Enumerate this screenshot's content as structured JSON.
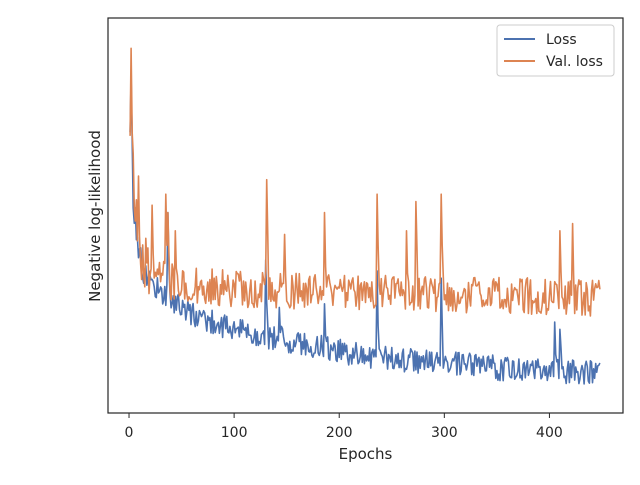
{
  "chart_data": {
    "type": "line",
    "title": "",
    "xlabel": "Epochs",
    "ylabel": "Negative log-likelihood",
    "xlim": [
      -20,
      470
    ],
    "ylim": [
      0,
      1
    ],
    "x_ticks": [
      0,
      100,
      200,
      300,
      400
    ],
    "y_ticks_visible": false,
    "grid": false,
    "legend": {
      "placement": "top-right",
      "entries": [
        "Loss",
        "Val. loss"
      ]
    },
    "colors": {
      "loss": "#4c72b0",
      "val_loss": "#dd8452",
      "frame": "#262626"
    },
    "n_epochs": 448,
    "series": [
      {
        "name": "Loss",
        "color": "#4c72b0",
        "baseline": [
          [
            1,
            0.7
          ],
          [
            4,
            0.55
          ],
          [
            7,
            0.45
          ],
          [
            10,
            0.38
          ],
          [
            15,
            0.33
          ],
          [
            25,
            0.3
          ],
          [
            40,
            0.26
          ],
          [
            60,
            0.22
          ],
          [
            100,
            0.18
          ],
          [
            150,
            0.15
          ],
          [
            200,
            0.12
          ],
          [
            250,
            0.1
          ],
          [
            300,
            0.085
          ],
          [
            350,
            0.075
          ],
          [
            400,
            0.065
          ],
          [
            448,
            0.06
          ]
        ],
        "noise": 0.035,
        "spikes": [
          [
            2,
            0.87
          ],
          [
            37,
            0.5
          ],
          [
            130,
            0.37
          ],
          [
            143,
            0.24
          ],
          [
            186,
            0.25
          ],
          [
            236,
            0.34
          ],
          [
            297,
            0.32
          ],
          [
            405,
            0.2
          ],
          [
            410,
            0.18
          ]
        ]
      },
      {
        "name": "Val. loss",
        "color": "#dd8452",
        "baseline": [
          [
            1,
            0.78
          ],
          [
            4,
            0.6
          ],
          [
            7,
            0.5
          ],
          [
            10,
            0.4
          ],
          [
            15,
            0.36
          ],
          [
            25,
            0.33
          ],
          [
            40,
            0.31
          ],
          [
            100,
            0.29
          ],
          [
            200,
            0.28
          ],
          [
            300,
            0.275
          ],
          [
            400,
            0.27
          ],
          [
            448,
            0.265
          ]
        ],
        "noise": 0.05,
        "spikes": [
          [
            2,
            0.95
          ],
          [
            9,
            0.6
          ],
          [
            22,
            0.52
          ],
          [
            35,
            0.55
          ],
          [
            37,
            0.5
          ],
          [
            44,
            0.45
          ],
          [
            131,
            0.59
          ],
          [
            148,
            0.44
          ],
          [
            186,
            0.5
          ],
          [
            236,
            0.55
          ],
          [
            264,
            0.45
          ],
          [
            273,
            0.53
          ],
          [
            297,
            0.55
          ],
          [
            410,
            0.45
          ],
          [
            422,
            0.47
          ]
        ]
      }
    ]
  }
}
